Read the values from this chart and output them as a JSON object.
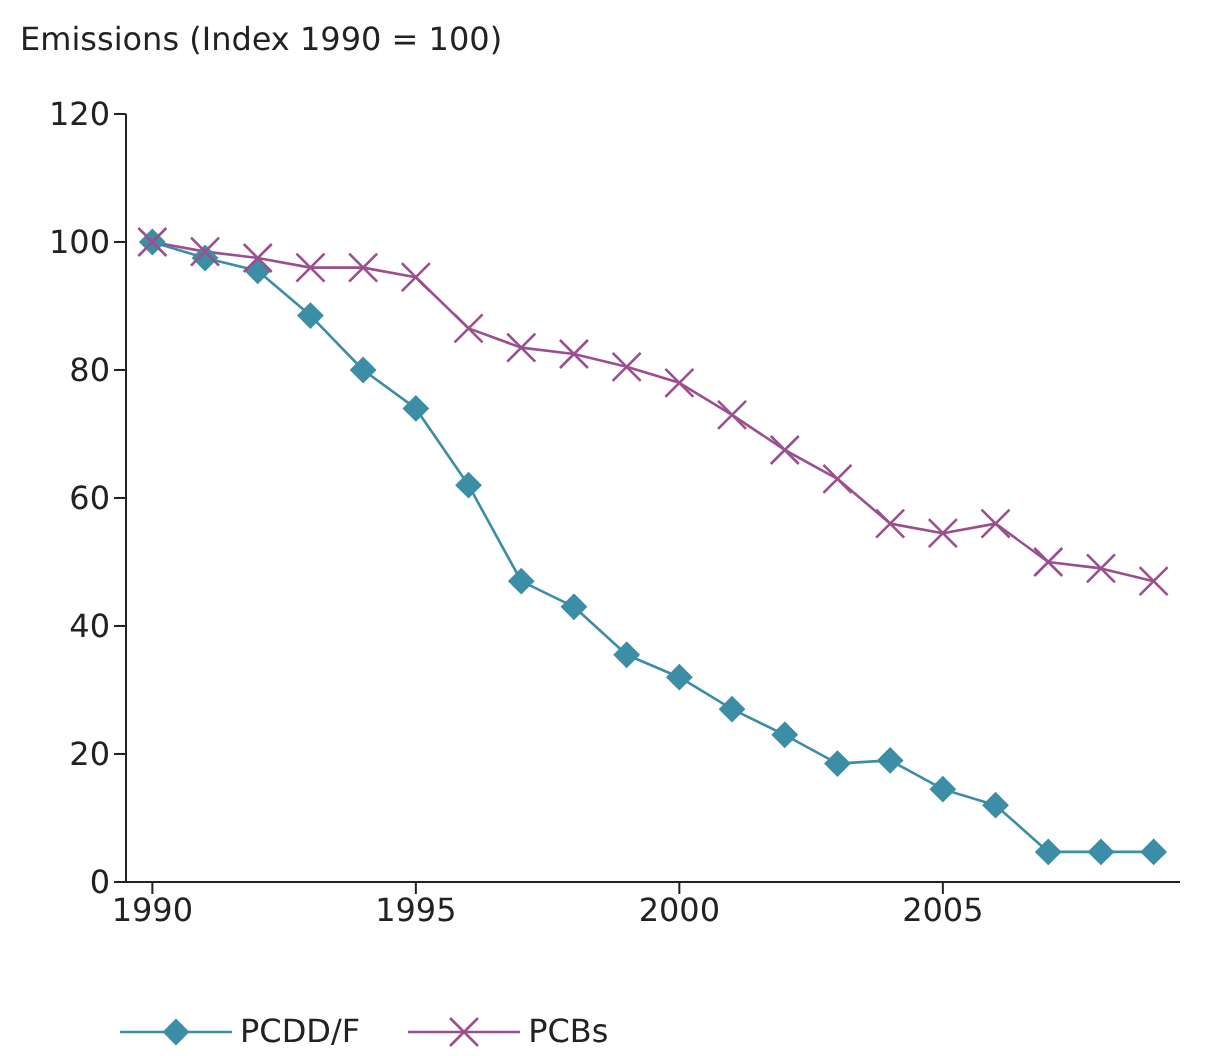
{
  "chart_data": {
    "type": "line",
    "ylabel": "Emissions (Index 1990 = 100)",
    "x": [
      1990,
      1991,
      1992,
      1993,
      1994,
      1995,
      1996,
      1997,
      1998,
      1999,
      2000,
      2001,
      2002,
      2003,
      2004,
      2005,
      2006,
      2007,
      2008,
      2009
    ],
    "series": [
      {
        "name": "PCDD/F",
        "color": "#3b8ea5",
        "marker": "diamond",
        "values": [
          100,
          97.5,
          95.5,
          88.5,
          80,
          74,
          62,
          47,
          43,
          35.5,
          32,
          27,
          23,
          18.5,
          19,
          14.5,
          12,
          4.7,
          4.7,
          4.7
        ]
      },
      {
        "name": "PCBs",
        "color": "#9b4f8e",
        "marker": "cross",
        "values": [
          100,
          98.5,
          97.5,
          96,
          96,
          94.5,
          86.5,
          83.5,
          82.5,
          80.5,
          78,
          73,
          67.5,
          63,
          56,
          54.5,
          56,
          50,
          49,
          47
        ]
      }
    ],
    "xlim": [
      1989.5,
      2009.5
    ],
    "xticks": [
      1990,
      1995,
      2000,
      2005
    ],
    "ylim": [
      0,
      120
    ],
    "yticks": [
      0,
      20,
      40,
      60,
      80,
      100,
      120
    ],
    "grid": false,
    "legend": "bottom",
    "line_style": "solid"
  }
}
